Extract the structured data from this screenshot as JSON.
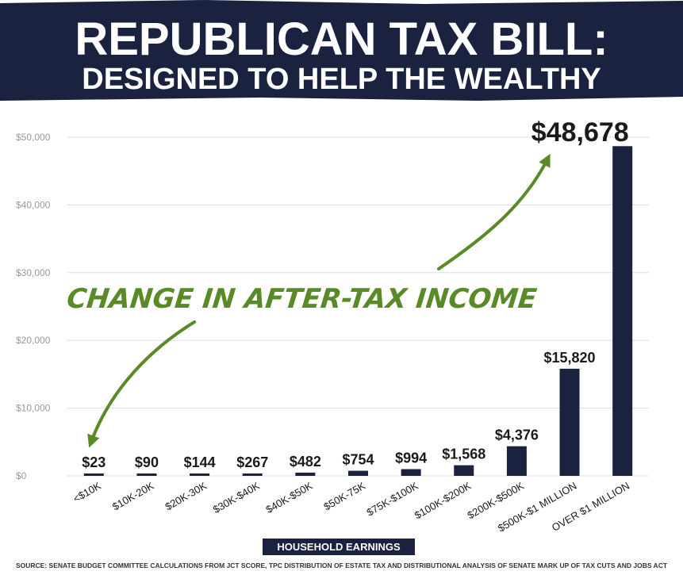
{
  "title_line1": "REPUBLICAN TAX BILL:",
  "title_line2": "DESIGNED TO HELP THE WEALTHY",
  "source": "SOURCE: SENATE BUDGET COMMITTEE CALCULATIONS FROM JCT SCORE, TPC DISTRIBUTION OF ESTATE TAX AND DISTRIBUTIONAL ANALYSIS OF SENATE MARK UP OF TAX CUTS AND JOBS ACT",
  "colors": {
    "banner": "#1b2240",
    "bar": "#1b2240",
    "annotation": "#5a8a28",
    "grid": "#dddddd"
  },
  "chart_data": {
    "type": "bar",
    "title": "REPUBLICAN TAX BILL: DESIGNED TO HELP THE WEALTHY",
    "xlabel": "HOUSEHOLD EARNINGS",
    "ylabel": "",
    "annotation": "CHANGE IN AFTER-TAX INCOME",
    "categories": [
      "<$10K",
      "$10K-20K",
      "$20K-30K",
      "$30K-$40K",
      "$40K-$50K",
      "$50K-75K",
      "$75K-$100K",
      "$100K-$200K",
      "$200K-$500K",
      "$500K-$1 MILLION",
      "OVER $1 MILLION"
    ],
    "values": [
      23,
      90,
      144,
      267,
      482,
      754,
      994,
      1568,
      4376,
      15820,
      48678
    ],
    "value_labels": [
      "$23",
      "$90",
      "$144",
      "$267",
      "$482",
      "$754",
      "$994",
      "$1,568",
      "$4,376",
      "$15,820",
      "$48,678"
    ],
    "yticks": [
      0,
      10000,
      20000,
      30000,
      40000,
      50000
    ],
    "ytick_labels": [
      "$0",
      "$10,000",
      "$20,000",
      "$30,000",
      "$40,000",
      "$50,000"
    ],
    "ylim": [
      0,
      50000
    ],
    "grid": true,
    "legend": "none"
  }
}
